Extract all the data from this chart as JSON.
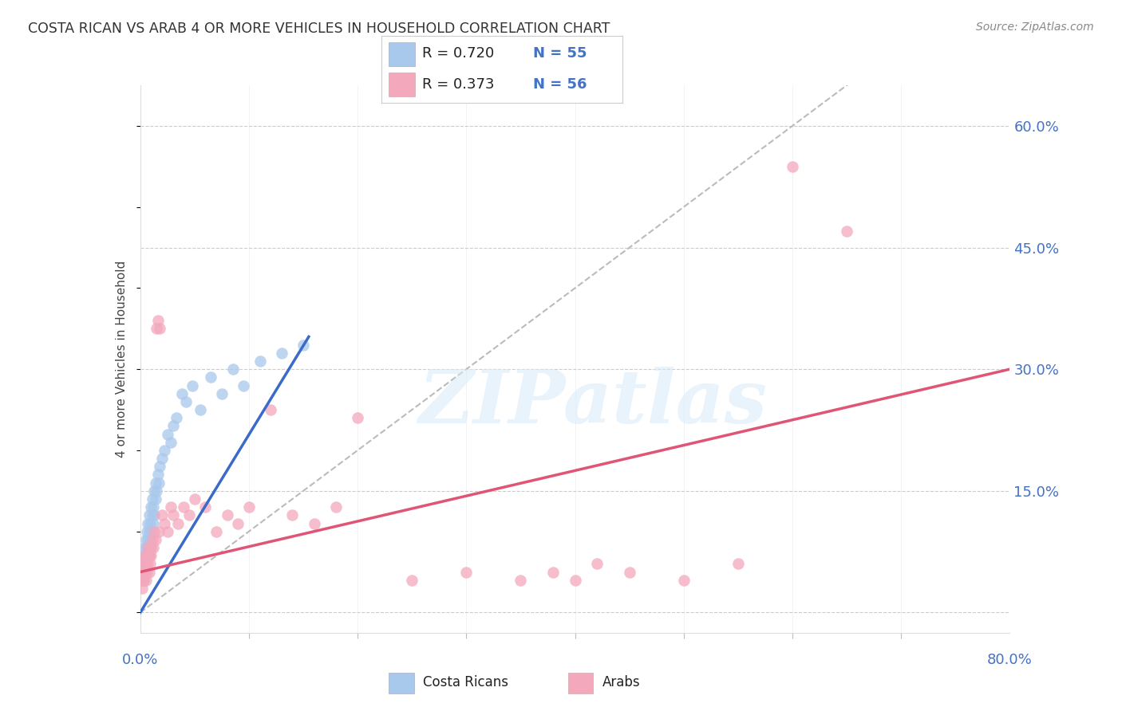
{
  "title": "COSTA RICAN VS ARAB 4 OR MORE VEHICLES IN HOUSEHOLD CORRELATION CHART",
  "source": "Source: ZipAtlas.com",
  "ylabel": "4 or more Vehicles in Household",
  "xlim": [
    0.0,
    0.8
  ],
  "ylim": [
    -0.025,
    0.65
  ],
  "yticks_right": [
    0.0,
    0.15,
    0.3,
    0.45,
    0.6
  ],
  "ytick_labels_right": [
    "",
    "15.0%",
    "30.0%",
    "45.0%",
    "60.0%"
  ],
  "blue_color": "#A8C8EC",
  "pink_color": "#F4A8BC",
  "trend_blue": "#3B6BC8",
  "trend_pink": "#E05575",
  "watermark_text": "ZIPatlas",
  "costa_rican_x": [
    0.001,
    0.002,
    0.002,
    0.003,
    0.003,
    0.003,
    0.004,
    0.004,
    0.004,
    0.005,
    0.005,
    0.005,
    0.006,
    0.006,
    0.006,
    0.007,
    0.007,
    0.007,
    0.008,
    0.008,
    0.008,
    0.009,
    0.009,
    0.01,
    0.01,
    0.01,
    0.011,
    0.011,
    0.012,
    0.012,
    0.013,
    0.013,
    0.014,
    0.014,
    0.015,
    0.016,
    0.017,
    0.018,
    0.02,
    0.022,
    0.025,
    0.028,
    0.03,
    0.033,
    0.038,
    0.042,
    0.048,
    0.055,
    0.065,
    0.075,
    0.085,
    0.095,
    0.11,
    0.13,
    0.15
  ],
  "costa_rican_y": [
    0.05,
    0.04,
    0.06,
    0.05,
    0.07,
    0.04,
    0.06,
    0.08,
    0.05,
    0.07,
    0.09,
    0.06,
    0.08,
    0.1,
    0.07,
    0.09,
    0.11,
    0.08,
    0.1,
    0.07,
    0.12,
    0.09,
    0.11,
    0.1,
    0.13,
    0.08,
    0.12,
    0.14,
    0.11,
    0.13,
    0.12,
    0.15,
    0.14,
    0.16,
    0.15,
    0.17,
    0.16,
    0.18,
    0.19,
    0.2,
    0.22,
    0.21,
    0.23,
    0.24,
    0.27,
    0.26,
    0.28,
    0.25,
    0.29,
    0.27,
    0.3,
    0.28,
    0.31,
    0.32,
    0.33
  ],
  "arab_x": [
    0.001,
    0.002,
    0.002,
    0.003,
    0.003,
    0.004,
    0.004,
    0.005,
    0.005,
    0.006,
    0.006,
    0.007,
    0.007,
    0.008,
    0.008,
    0.009,
    0.01,
    0.01,
    0.011,
    0.012,
    0.013,
    0.014,
    0.015,
    0.016,
    0.017,
    0.018,
    0.02,
    0.022,
    0.025,
    0.028,
    0.03,
    0.035,
    0.04,
    0.045,
    0.05,
    0.06,
    0.07,
    0.08,
    0.09,
    0.1,
    0.12,
    0.14,
    0.16,
    0.18,
    0.2,
    0.25,
    0.3,
    0.35,
    0.38,
    0.4,
    0.42,
    0.45,
    0.5,
    0.55,
    0.6,
    0.65
  ],
  "arab_y": [
    0.04,
    0.05,
    0.03,
    0.06,
    0.04,
    0.05,
    0.07,
    0.04,
    0.06,
    0.05,
    0.07,
    0.06,
    0.08,
    0.05,
    0.07,
    0.06,
    0.08,
    0.07,
    0.09,
    0.08,
    0.1,
    0.09,
    0.35,
    0.36,
    0.1,
    0.35,
    0.12,
    0.11,
    0.1,
    0.13,
    0.12,
    0.11,
    0.13,
    0.12,
    0.14,
    0.13,
    0.1,
    0.12,
    0.11,
    0.13,
    0.25,
    0.12,
    0.11,
    0.13,
    0.24,
    0.04,
    0.05,
    0.04,
    0.05,
    0.04,
    0.06,
    0.05,
    0.04,
    0.06,
    0.55,
    0.47
  ],
  "blue_trend_x0": 0.0,
  "blue_trend_y0": 0.0,
  "blue_trend_x1": 0.155,
  "blue_trend_y1": 0.34,
  "pink_trend_x0": 0.0,
  "pink_trend_y0": 0.05,
  "pink_trend_x1": 0.8,
  "pink_trend_y1": 0.3
}
